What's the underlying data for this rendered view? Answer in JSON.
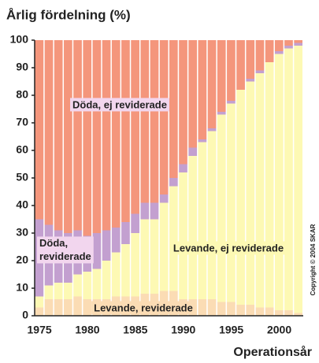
{
  "chart_data": {
    "type": "stacked_bar",
    "title": "Årlig fördelning (%)",
    "x_label": "Operationsår",
    "copyright": "Copyright © 2004 SKAR",
    "categories": [
      "1975",
      null,
      null,
      null,
      null,
      "1980",
      null,
      null,
      null,
      null,
      "1985",
      null,
      null,
      null,
      null,
      "1990",
      null,
      null,
      null,
      null,
      "1995",
      null,
      null,
      null,
      null,
      "2000",
      null,
      null
    ],
    "series": [
      {
        "name": "Levande, reviderade",
        "color": "#fbdcb4",
        "values": [
          3,
          6,
          6,
          6,
          7,
          6,
          6,
          6,
          7,
          7,
          7,
          8,
          8,
          9,
          9,
          6,
          6,
          6,
          6,
          5,
          5,
          4,
          4,
          3,
          3,
          2,
          2,
          1
        ]
      },
      {
        "name": "Levande, ej reviderade",
        "color": "#fdf9b4",
        "values": [
          4,
          5,
          6,
          6,
          8,
          10,
          11,
          14,
          16,
          19,
          23,
          27,
          27,
          32,
          38,
          46,
          52,
          57,
          61,
          68,
          72,
          78,
          81,
          85,
          89,
          93,
          95,
          97
        ]
      },
      {
        "name": "Döda, reviderade",
        "color": "#c3a0d0",
        "values": [
          28,
          22,
          19,
          18,
          16,
          13,
          13,
          11,
          9,
          8,
          7,
          6,
          6,
          3,
          3,
          3,
          3,
          1,
          1,
          1,
          1,
          0,
          1,
          1,
          0,
          1,
          1,
          1
        ]
      },
      {
        "name": "Döda, ej reviderade",
        "color": "#f4967c",
        "values": [
          65,
          67,
          69,
          70,
          69,
          71,
          70,
          69,
          68,
          66,
          63,
          59,
          59,
          56,
          50,
          45,
          39,
          36,
          32,
          26,
          22,
          18,
          14,
          11,
          8,
          4,
          2,
          1
        ]
      }
    ],
    "ylim": [
      0,
      100
    ],
    "yticks": [
      0,
      10,
      20,
      30,
      40,
      50,
      60,
      70,
      80,
      90,
      100
    ]
  }
}
